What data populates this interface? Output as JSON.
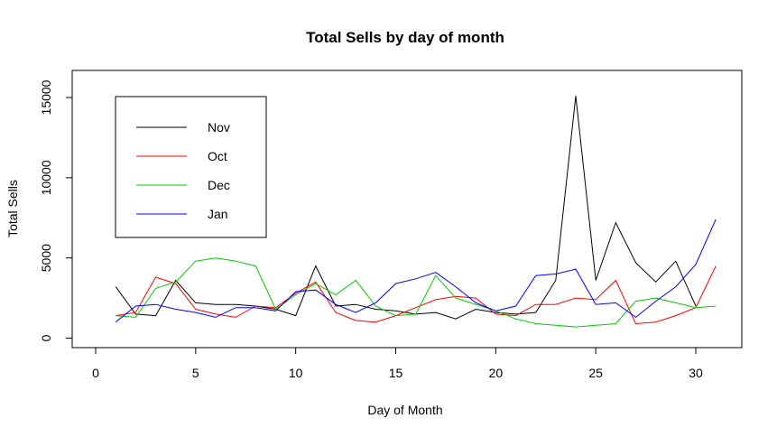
{
  "chart_data": {
    "type": "line",
    "title": "Total Sells by day of month",
    "xlabel": "Day of Month",
    "ylabel": "Total Sells",
    "xlim": [
      0,
      31
    ],
    "ylim": [
      0,
      15000
    ],
    "x_ticks": [
      0,
      5,
      10,
      15,
      20,
      25,
      30
    ],
    "y_ticks": [
      0,
      5000,
      10000,
      15000
    ],
    "grid": false,
    "legend_position": "top-left",
    "x": [
      1,
      2,
      3,
      4,
      5,
      6,
      7,
      8,
      9,
      10,
      11,
      12,
      13,
      14,
      15,
      16,
      17,
      18,
      19,
      20,
      21,
      22,
      23,
      24,
      25,
      26,
      27,
      28,
      29,
      30,
      31
    ],
    "series": [
      {
        "name": "Nov",
        "color": "#000000",
        "x": [
          1,
          2,
          3,
          4,
          5,
          6,
          7,
          8,
          9,
          10,
          11,
          12,
          13,
          14,
          15,
          16,
          17,
          18,
          19,
          20,
          21,
          22,
          23,
          24,
          25,
          26,
          27,
          28,
          29,
          30
        ],
        "values": [
          3200,
          1500,
          1400,
          3600,
          2200,
          2100,
          2100,
          2000,
          1800,
          1400,
          4500,
          2000,
          2100,
          1800,
          1700,
          1500,
          1600,
          1200,
          1800,
          1600,
          1500,
          1600,
          3600,
          15100,
          3600,
          7200,
          4700,
          3500,
          4800,
          2000
        ]
      },
      {
        "name": "Oct",
        "color": "#ff0000",
        "x": [
          1,
          2,
          3,
          4,
          5,
          6,
          7,
          8,
          9,
          10,
          11,
          12,
          13,
          14,
          15,
          16,
          17,
          18,
          19,
          20,
          21,
          22,
          23,
          24,
          25,
          26,
          27,
          28,
          29,
          30,
          31
        ],
        "values": [
          1400,
          1600,
          3800,
          3400,
          1800,
          1500,
          1300,
          2000,
          1900,
          2800,
          3500,
          1600,
          1100,
          1000,
          1400,
          1900,
          2400,
          2600,
          2500,
          1500,
          1400,
          2100,
          2100,
          2500,
          2400,
          3600,
          900,
          1000,
          1400,
          1900,
          4500
        ]
      },
      {
        "name": "Dec",
        "color": "#00cd00",
        "x": [
          1,
          2,
          3,
          4,
          5,
          6,
          7,
          8,
          9,
          10,
          11,
          12,
          13,
          14,
          15,
          16,
          17,
          18,
          19,
          20,
          21,
          22,
          23,
          24,
          25,
          26,
          27,
          28,
          29,
          30,
          31
        ],
        "values": [
          1400,
          1300,
          3100,
          3500,
          4800,
          5000,
          4800,
          4500,
          1800,
          2700,
          3400,
          2700,
          3600,
          2000,
          1400,
          1500,
          3900,
          2500,
          2100,
          1700,
          1200,
          900,
          800,
          700,
          800,
          900,
          2300,
          2500,
          2200,
          1900,
          2000
        ]
      },
      {
        "name": "Jan",
        "color": "#0000ff",
        "x": [
          1,
          2,
          3,
          4,
          5,
          6,
          7,
          8,
          9,
          10,
          11,
          12,
          13,
          14,
          15,
          16,
          17,
          18,
          19,
          20,
          21,
          22,
          23,
          24,
          25,
          26,
          27,
          28,
          29,
          30,
          31
        ],
        "values": [
          1000,
          2000,
          2100,
          1800,
          1600,
          1300,
          1900,
          1900,
          1700,
          2900,
          3000,
          2100,
          1600,
          2200,
          3400,
          3700,
          4100,
          3200,
          2200,
          1700,
          2000,
          3900,
          4000,
          4300,
          2100,
          2200,
          1300,
          2300,
          3200,
          4600,
          7400
        ]
      }
    ]
  }
}
